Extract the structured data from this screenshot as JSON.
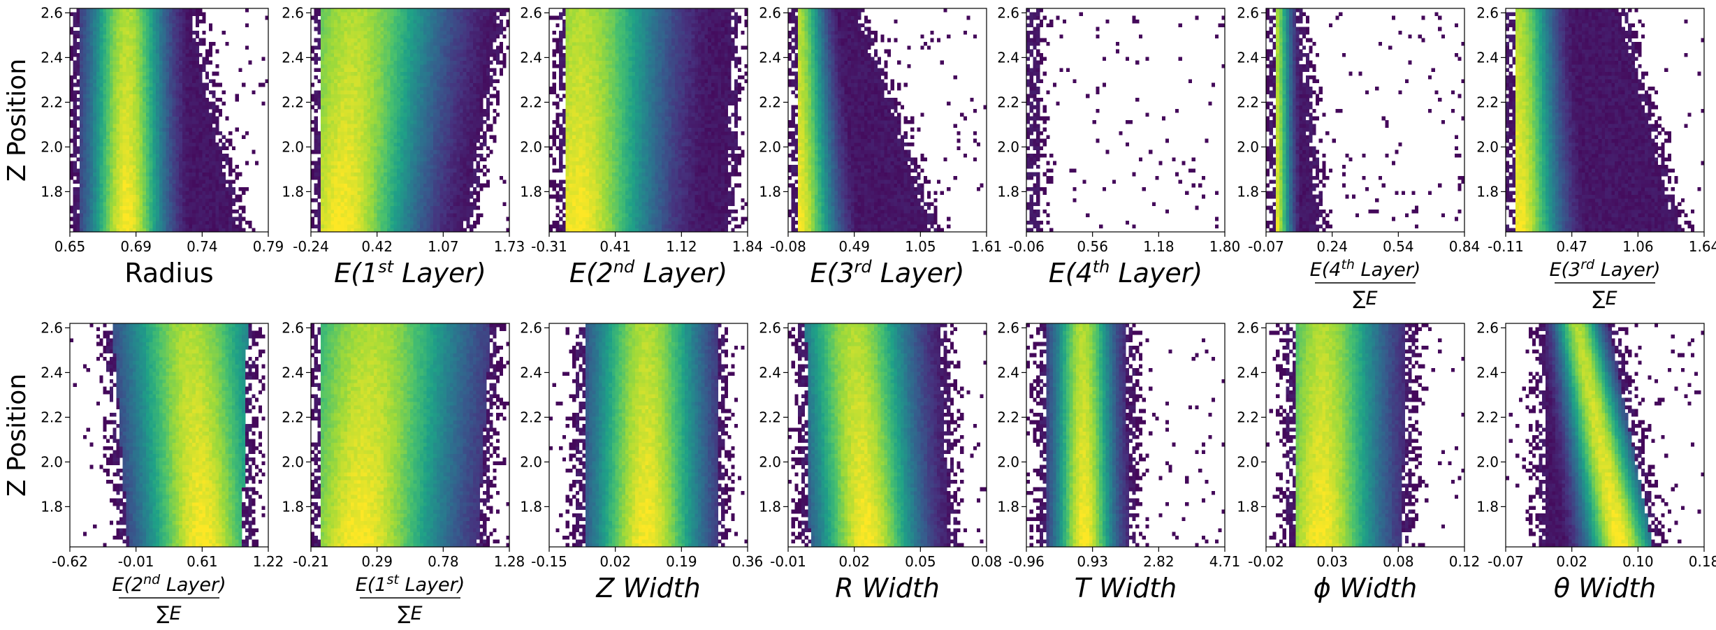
{
  "figure": {
    "row_ylabels": [
      "Z Position",
      "Z Position"
    ],
    "colormap": [
      "#440154",
      "#46327e",
      "#365c8d",
      "#277f8e",
      "#1fa187",
      "#4ac16d",
      "#a0da39",
      "#fde725"
    ]
  },
  "chart_data": [
    {
      "type": "heatmap",
      "row": 0,
      "col": 0,
      "xlabel": "Radius",
      "label_style": "plain",
      "xticks": [
        "0.65",
        "0.69",
        "0.74",
        "0.79"
      ],
      "xlim": [
        0.64,
        0.79
      ],
      "yticks": [
        "1.8",
        "2.0",
        "2.2",
        "2.4",
        "2.6"
      ],
      "ylim": [
        1.62,
        2.62
      ],
      "yaxis_label": "Z Position",
      "density": {
        "peak_x": [
          0.683,
          0.683
        ],
        "spread_x": [
          0.02,
          0.02
        ],
        "core_x": [
          0.66,
          0.705
        ],
        "edge_x": [
          0.772,
          0.735
        ],
        "left_x": [
          0.642,
          0.642
        ]
      }
    },
    {
      "type": "heatmap",
      "row": 0,
      "col": 1,
      "xlabel": [
        "E(1",
        "st",
        " Layer)"
      ],
      "label_style": "sup",
      "xticks": [
        "-0.24",
        "0.42",
        "1.07",
        "1.73"
      ],
      "xlim": [
        -0.24,
        1.73
      ],
      "yticks": [
        "1.8",
        "2.0",
        "2.2",
        "2.4",
        "2.6"
      ],
      "ylim": [
        1.62,
        2.62
      ],
      "density": {
        "peak_x": [
          0.05,
          0.2
        ],
        "spread_x": [
          0.5,
          0.6
        ],
        "left_x": [
          -0.22,
          -0.22
        ],
        "edge_x": [
          1.35,
          1.7
        ]
      }
    },
    {
      "type": "heatmap",
      "row": 0,
      "col": 2,
      "xlabel": [
        "E(2",
        "nd",
        " Layer)"
      ],
      "label_style": "sup",
      "xticks": [
        "-0.31",
        "0.41",
        "1.12",
        "1.84"
      ],
      "xlim": [
        -0.31,
        1.84
      ],
      "yticks": [
        "1.8",
        "2.0",
        "2.2",
        "2.4",
        "2.6"
      ],
      "ylim": [
        1.62,
        2.62
      ],
      "density": {
        "peak_x": [
          0.0,
          0.05
        ],
        "spread_x": [
          0.55,
          0.6
        ],
        "left_x": [
          -0.22,
          -0.2
        ],
        "edge_x": [
          1.7,
          1.75
        ]
      }
    },
    {
      "type": "heatmap",
      "row": 0,
      "col": 3,
      "xlabel": [
        "E(3",
        "rd",
        " Layer)"
      ],
      "label_style": "sup",
      "xticks": [
        "-0.08",
        "0.49",
        "1.05",
        "1.61"
      ],
      "xlim": [
        -0.08,
        1.61
      ],
      "yticks": [
        "1.8",
        "2.0",
        "2.2",
        "2.4",
        "2.6"
      ],
      "ylim": [
        1.62,
        2.62
      ],
      "density": {
        "peak_x": [
          0.0,
          0.0
        ],
        "spread_x": [
          0.22,
          0.15
        ],
        "left_x": [
          -0.06,
          -0.06
        ],
        "edge_x": [
          1.2,
          0.55
        ]
      }
    },
    {
      "type": "heatmap",
      "row": 0,
      "col": 4,
      "xlabel": [
        "E(4",
        "th",
        " Layer)"
      ],
      "label_style": "sup",
      "xticks": [
        "-0.06",
        "0.56",
        "1.18",
        "1.80"
      ],
      "xlim": [
        -0.06,
        1.8
      ],
      "yticks": [
        "1.8",
        "2.0",
        "2.2",
        "2.4",
        "2.6"
      ],
      "ylim": [
        1.62,
        2.62
      ],
      "density": {
        "peak_x": [
          -0.01,
          -0.01
        ],
        "spread_x": [
          0.05,
          0.05
        ],
        "left_x": [
          -0.055,
          -0.055
        ],
        "edge_x": [
          0.07,
          0.06
        ]
      }
    },
    {
      "type": "heatmap",
      "row": 0,
      "col": 5,
      "xlabel": {
        "num": [
          "E(4",
          "th",
          " Layer)"
        ],
        "den": "∑E"
      },
      "label_style": "frac",
      "xticks": [
        "-0.07",
        "0.24",
        "0.54",
        "0.84"
      ],
      "xlim": [
        -0.07,
        0.84
      ],
      "yticks": [
        "1.8",
        "2.0",
        "2.2",
        "2.4",
        "2.6"
      ],
      "ylim": [
        1.62,
        2.62
      ],
      "density": {
        "peak_x": [
          -0.03,
          -0.03
        ],
        "spread_x": [
          0.05,
          0.05
        ],
        "left_x": [
          -0.062,
          -0.062
        ],
        "edge_x": [
          0.2,
          0.1
        ]
      }
    },
    {
      "type": "heatmap",
      "row": 0,
      "col": 6,
      "xlabel": {
        "num": [
          "E(3",
          "rd",
          " Layer)"
        ],
        "den": "∑E"
      },
      "label_style": "frac",
      "xticks": [
        "-0.11",
        "0.47",
        "1.06",
        "1.64"
      ],
      "xlim": [
        -0.11,
        1.64
      ],
      "yticks": [
        "1.8",
        "2.0",
        "2.2",
        "2.4",
        "2.6"
      ],
      "ylim": [
        1.62,
        2.62
      ],
      "density": {
        "peak_x": [
          0.0,
          0.0
        ],
        "spread_x": [
          0.25,
          0.2
        ],
        "left_x": [
          -0.1,
          -0.1
        ],
        "edge_x": [
          1.45,
          0.95
        ]
      }
    },
    {
      "type": "heatmap",
      "row": 1,
      "col": 0,
      "xlabel": {
        "num": [
          "E(2",
          "nd",
          " Layer)"
        ],
        "den": "∑E"
      },
      "label_style": "frac",
      "xticks": [
        "-0.62",
        "-0.01",
        "0.61",
        "1.22"
      ],
      "xlim": [
        -0.62,
        1.22
      ],
      "yticks": [
        "1.8",
        "2.0",
        "2.2",
        "2.4",
        "2.6"
      ],
      "ylim": [
        1.62,
        2.62
      ],
      "yaxis_label": "Z Position",
      "density": {
        "peak_x": [
          0.62,
          0.5
        ],
        "spread_x": [
          0.4,
          0.45
        ],
        "left_x": [
          -0.15,
          -0.3
        ],
        "edge_x": [
          1.05,
          1.1
        ]
      }
    },
    {
      "type": "heatmap",
      "row": 1,
      "col": 1,
      "xlabel": {
        "num": [
          "E(1",
          "st",
          " Layer)"
        ],
        "den": "∑E"
      },
      "label_style": "frac",
      "xticks": [
        "-0.21",
        "0.29",
        "0.78",
        "1.28"
      ],
      "xlim": [
        -0.21,
        1.28
      ],
      "yticks": [
        "1.8",
        "2.0",
        "2.2",
        "2.4",
        "2.6"
      ],
      "ylim": [
        1.62,
        2.62
      ],
      "density": {
        "peak_x": [
          0.15,
          0.25
        ],
        "spread_x": [
          0.45,
          0.5
        ],
        "left_x": [
          -0.19,
          -0.19
        ],
        "edge_x": [
          1.1,
          1.2
        ]
      }
    },
    {
      "type": "heatmap",
      "row": 1,
      "col": 2,
      "xlabel": "Z Width",
      "label_style": "italic",
      "xticks": [
        "-0.15",
        "0.02",
        "0.19",
        "0.36"
      ],
      "xlim": [
        -0.15,
        0.36
      ],
      "yticks": [
        "1.8",
        "2.0",
        "2.2",
        "2.4",
        "2.6"
      ],
      "ylim": [
        1.62,
        2.62
      ],
      "density": {
        "peak_x": [
          0.1,
          0.1
        ],
        "spread_x": [
          0.1,
          0.1
        ],
        "left_x": [
          -0.08,
          -0.08
        ],
        "edge_x": [
          0.3,
          0.3
        ]
      }
    },
    {
      "type": "heatmap",
      "row": 1,
      "col": 3,
      "xlabel": "R Width",
      "label_style": "italic",
      "xticks": [
        "-0.01",
        "0.02",
        "0.05",
        "0.08"
      ],
      "xlim": [
        -0.015,
        0.085
      ],
      "yticks": [
        "1.8",
        "2.0",
        "2.2",
        "2.4",
        "2.6"
      ],
      "ylim": [
        1.62,
        2.62
      ],
      "density": {
        "peak_x": [
          0.025,
          0.018
        ],
        "spread_x": [
          0.018,
          0.02
        ],
        "left_x": [
          -0.008,
          -0.01
        ],
        "edge_x": [
          0.07,
          0.065
        ]
      }
    },
    {
      "type": "heatmap",
      "row": 1,
      "col": 4,
      "xlabel": "T Width",
      "label_style": "italic",
      "xticks": [
        "-0.96",
        "0.93",
        "2.82",
        "4.71"
      ],
      "xlim": [
        -0.96,
        4.71
      ],
      "yticks": [
        "1.8",
        "2.0",
        "2.2",
        "2.4",
        "2.6"
      ],
      "ylim": [
        1.62,
        2.62
      ],
      "density": {
        "peak_x": [
          0.7,
          0.65
        ],
        "spread_x": [
          0.6,
          0.6
        ],
        "left_x": [
          -0.6,
          -0.6
        ],
        "edge_x": [
          2.2,
          2.1
        ]
      }
    },
    {
      "type": "heatmap",
      "row": 1,
      "col": 5,
      "xlabel": "ϕ Width",
      "label_style": "italic",
      "xticks": [
        "-0.02",
        "0.03",
        "0.08",
        "0.12"
      ],
      "xlim": [
        -0.02,
        0.125
      ],
      "yticks": [
        "1.8",
        "2.0",
        "2.2",
        "2.4",
        "2.6"
      ],
      "ylim": [
        1.62,
        2.62
      ],
      "density": {
        "peak_x": [
          0.02,
          0.022
        ],
        "spread_x": [
          0.03,
          0.03
        ],
        "left_x": [
          -0.005,
          -0.005
        ],
        "edge_x": [
          0.085,
          0.088
        ]
      }
    },
    {
      "type": "heatmap",
      "row": 1,
      "col": 6,
      "xlabel": "θ Width",
      "label_style": "italic",
      "xticks": [
        "-0.07",
        "0.02",
        "0.10",
        "0.18"
      ],
      "xlim": [
        -0.07,
        0.18
      ],
      "yticks": [
        "1.8",
        "2.0",
        "2.2",
        "2.4",
        "2.6"
      ],
      "ylim": [
        1.62,
        2.62
      ],
      "density": {
        "peak_x": [
          0.075,
          0.02
        ],
        "spread_x": [
          0.03,
          0.02
        ],
        "left_x": [
          -0.03,
          -0.03
        ],
        "edge_x": [
          0.125,
          0.07
        ]
      }
    }
  ]
}
